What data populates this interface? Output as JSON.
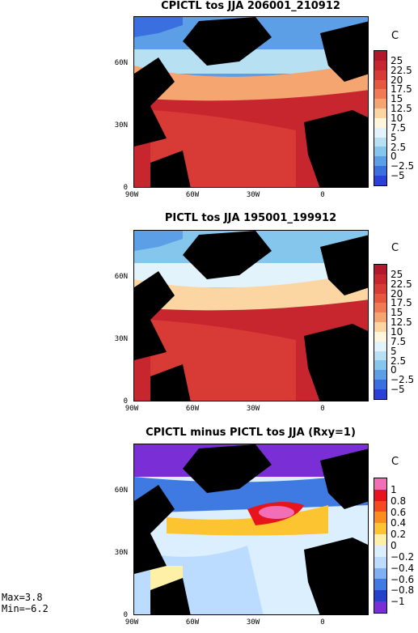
{
  "panels": [
    {
      "title": "CPICTL tos JJA 206001_210912",
      "unit": "C",
      "yticks": [
        "60N",
        "30N",
        "0"
      ],
      "xticks": [
        "90W",
        "60W",
        "30W",
        "0"
      ],
      "colorbar": {
        "labels": [
          "25",
          "22.5",
          "20",
          "17.5",
          "15",
          "12.5",
          "10",
          "7.5",
          "5",
          "2.5",
          "0",
          "−2.5",
          "−5"
        ],
        "colors": [
          "#b2182b",
          "#c8262e",
          "#d83a35",
          "#e5573f",
          "#ef7a55",
          "#f5a56f",
          "#fbd6a3",
          "#fff6dd",
          "#e3f3fb",
          "#b7e1f3",
          "#85c6ec",
          "#5d9fe6",
          "#3a6fe0",
          "#2b3fd9"
        ]
      }
    },
    {
      "title": "PICTL tos JJA 195001_199912",
      "unit": "C",
      "yticks": [
        "60N",
        "30N",
        "0"
      ],
      "xticks": [
        "90W",
        "60W",
        "30W",
        "0"
      ],
      "colorbar": {
        "labels": [
          "25",
          "22.5",
          "20",
          "17.5",
          "15",
          "12.5",
          "10",
          "7.5",
          "5",
          "2.5",
          "0",
          "−2.5",
          "−5"
        ],
        "colors": [
          "#b2182b",
          "#c8262e",
          "#d83a35",
          "#e5573f",
          "#ef7a55",
          "#f5a56f",
          "#fbd6a3",
          "#fff6dd",
          "#e3f3fb",
          "#b7e1f3",
          "#85c6ec",
          "#5d9fe6",
          "#3a6fe0",
          "#2b3fd9"
        ]
      }
    },
    {
      "title": "CPICTL minus PICTL tos JJA (Rxy=1)",
      "unit": "C",
      "yticks": [
        "60N",
        "30N",
        "0"
      ],
      "xticks": [
        "90W",
        "60W",
        "30W",
        "0"
      ],
      "colorbar": {
        "labels": [
          "1",
          "0.8",
          "0.6",
          "0.4",
          "0.2",
          "0",
          "−0.2",
          "−0.4",
          "−0.6",
          "−0.8",
          "−1"
        ],
        "colors": [
          "#f26fb8",
          "#e8141c",
          "#f54a20",
          "#fb8c1e",
          "#fcc430",
          "#fff0a8",
          "#dcefff",
          "#bcdcff",
          "#7fb0f2",
          "#3f7ae3",
          "#2441c9",
          "#7a2fd6"
        ]
      }
    }
  ],
  "stats": {
    "max": "Max=3.8",
    "min": "Min=−6.2"
  }
}
